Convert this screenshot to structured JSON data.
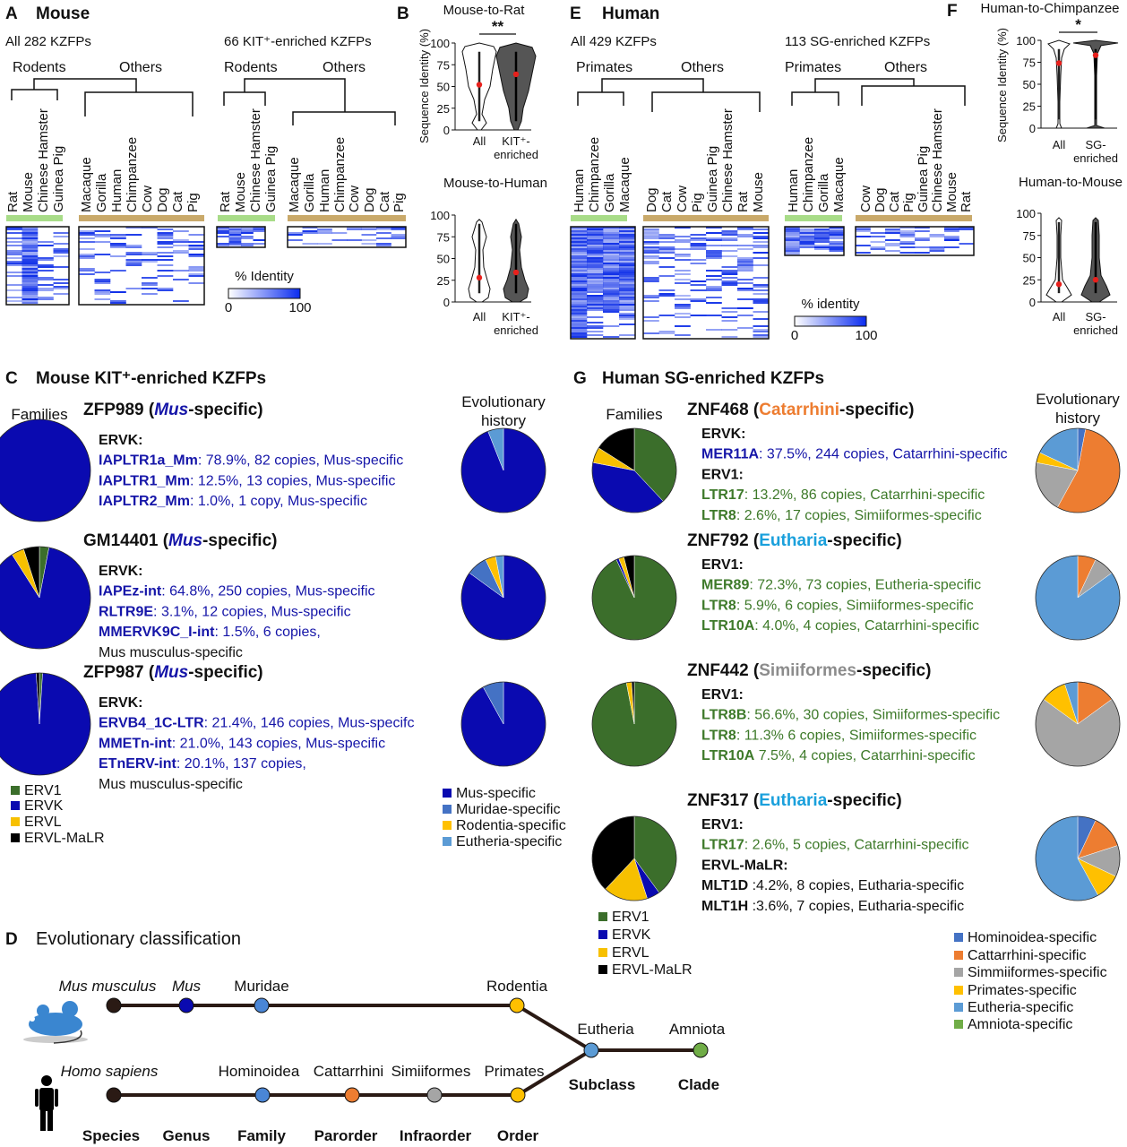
{
  "panel_a": {
    "letter": "A",
    "title": "Mouse",
    "left": {
      "label": "All 282 KZFPs",
      "group1": "Rodents",
      "group2": "Others",
      "species1": [
        "Rat",
        "Mouse",
        "Chinese Hamster",
        "Guinea Pig"
      ],
      "species2": [
        "Macaque",
        "Gorilla",
        "Human",
        "Chimpanzee",
        "Cow",
        "Dog",
        "Cat",
        "Pig"
      ]
    },
    "right": {
      "label": "66 KIT⁺-enriched KZFPs",
      "group1": "Rodents",
      "group2": "Others",
      "species1": [
        "Rat",
        "Mouse",
        "Chinese Hamster",
        "Guinea Pig"
      ],
      "species2": [
        "Macaque",
        "Gorilla",
        "Human",
        "Chimpanzee",
        "Cow",
        "Dog",
        "Cat",
        "Pig"
      ]
    },
    "legend": {
      "title": "% Identity",
      "min": 0,
      "max": 100
    }
  },
  "panel_b": {
    "letter": "B",
    "charts": [
      {
        "type": "violin",
        "title": "Mouse-to-Rat",
        "significance": "**",
        "y_label": "Sequence Identity (%)",
        "categories": [
          [
            "All"
          ],
          [
            "KIT⁺-",
            "enriched"
          ]
        ],
        "colors": [
          "#ffffff",
          "#555555"
        ],
        "means": [
          52,
          64
        ],
        "mean_color": "#e8201c",
        "ylim": [
          0,
          100
        ],
        "yticks": [
          0,
          25,
          50,
          75,
          100
        ]
      },
      {
        "type": "violin",
        "title": "Mouse-to-Human",
        "categories": [
          [
            "All"
          ],
          [
            "KIT⁺-",
            "enriched"
          ]
        ],
        "colors": [
          "#ffffff",
          "#555555"
        ],
        "means": [
          28,
          34
        ],
        "mean_color": "#e8201c",
        "ylim": [
          0,
          100
        ],
        "yticks": [
          0,
          25,
          50,
          75,
          100
        ]
      }
    ]
  },
  "panel_c": {
    "letter": "C",
    "title": "Mouse KIT⁺-enriched KZFPs",
    "families_label": "Families",
    "history_label": [
      "Evolutionary",
      "history"
    ],
    "entries": [
      {
        "heading": {
          "name": "ZFP989 (",
          "clade": "Mus",
          "tail": "-specific)",
          "clade_color": "#1515a8"
        },
        "groups": [
          {
            "family": "ERVK:",
            "color": "#1515a8",
            "items": [
              {
                "te": "IAPLTR1a_Mm",
                "text": ": 78.9%, 82 copies, Mus-specific"
              },
              {
                "te": "IAPLTR1_Mm",
                "text": ": 12.5%, 13 copies, Mus-specific"
              },
              {
                "te": "IAPLTR2_Mm",
                "text": ": 1.0%, 1 copy, Mus-specific"
              }
            ]
          }
        ],
        "families": {
          "type": "pie",
          "values": [
            0,
            100,
            0,
            0
          ]
        },
        "history": {
          "type": "pie",
          "values": [
            94,
            0,
            0,
            6
          ]
        }
      },
      {
        "heading": {
          "name": "GM14401 (",
          "clade": "Mus",
          "tail": "-specific)",
          "clade_color": "#1515a8"
        },
        "groups": [
          {
            "family": "ERVK:",
            "color": "#1515a8",
            "items": [
              {
                "te": "IAPEz-int",
                "text": ": 64.8%, 250 copies, Mus-specific"
              },
              {
                "te": "RLTR9E",
                "text": ": 3.1%, 12 copies, Mus-specific"
              },
              {
                "te": "MMERVK9C_I-int",
                "text": ": 1.5%, 6 copies,",
                "continuation": "Mus musculus-specific"
              }
            ]
          }
        ],
        "families": {
          "type": "pie",
          "values": [
            3,
            88,
            4,
            5
          ]
        },
        "history": {
          "type": "pie",
          "values": [
            85,
            8,
            4,
            3
          ]
        }
      },
      {
        "heading": {
          "name": "ZFP987 (",
          "clade": "Mus",
          "tail": "-specific)",
          "clade_color": "#1515a8"
        },
        "groups": [
          {
            "family": "ERVK:",
            "color": "#1515a8",
            "items": [
              {
                "te": "ERVB4_1C-LTR",
                "text": ": 21.4%, 146 copies, Mus-specifc"
              },
              {
                "te": "MMETn-int",
                "text": ": 21.0%, 143 copies, Mus-specific"
              },
              {
                "te": "ETnERV-int",
                "text": ": 20.1%,  137 copies,",
                "continuation": "Mus musculus-specific"
              }
            ]
          }
        ],
        "families": {
          "type": "pie",
          "values": [
            1,
            98,
            0,
            1
          ]
        },
        "history": {
          "type": "pie",
          "values": [
            92,
            8,
            0,
            0
          ]
        }
      }
    ],
    "family_legend": [
      {
        "name": "ERV1",
        "color": "#3b6e2b"
      },
      {
        "name": "ERVK",
        "color": "#0a0ab0"
      },
      {
        "name": "ERVL",
        "color": "#f7c000"
      },
      {
        "name": "ERVL-MaLR",
        "color": "#000000"
      }
    ],
    "history_legend": [
      {
        "name": "Mus-specific",
        "color": "#0a0ab0"
      },
      {
        "name": "Muridae-specific",
        "color": "#4472c4"
      },
      {
        "name": "Rodentia-specific",
        "color": "#ffc000"
      },
      {
        "name": "Eutheria-specific",
        "color": "#5b9bd5"
      }
    ]
  },
  "panel_d": {
    "letter": "D",
    "title": "Evolutionary classification",
    "top": {
      "species": "Mus musculus",
      "nodes": [
        {
          "name": "Mus",
          "color": "#0a0ab0"
        },
        {
          "name": "Muridae",
          "color": "#4a86d6"
        },
        {
          "name": "Rodentia",
          "color": "#ffc000"
        }
      ]
    },
    "bottom": {
      "species": "Homo sapiens",
      "nodes": [
        {
          "name": "Hominoidea",
          "color": "#4a86d6"
        },
        {
          "name": "Cattarrhini",
          "color": "#ed7d31"
        },
        {
          "name": "Simiiformes",
          "color": "#a5a5a5"
        },
        {
          "name": "Primates",
          "color": "#ffc000"
        }
      ]
    },
    "shared": [
      {
        "name": "Eutheria",
        "color": "#5b9bd5"
      },
      {
        "name": "Amniota",
        "color": "#70ad47"
      }
    ],
    "ranks": [
      "Species",
      "Genus",
      "Family",
      "Parorder",
      "Infraorder",
      "Order",
      "Subclass",
      "Clade"
    ]
  },
  "panel_e": {
    "letter": "E",
    "title": "Human",
    "left": {
      "label": "All 429 KZFPs",
      "group1": "Primates",
      "group2": "Others",
      "species1": [
        "Human",
        "Chimpanzee",
        "Gorilla",
        "Macaque"
      ],
      "species2": [
        "Dog",
        "Cat",
        "Cow",
        "Pig",
        "Guinea Pig",
        "Chinese Hamster",
        "Rat",
        "Mouse"
      ]
    },
    "right": {
      "label": "113 SG-enriched KZFPs",
      "group1": "Primates",
      "group2": "Others",
      "species1": [
        "Human",
        "Chimpanzee",
        "Gorilla",
        "Macaque"
      ],
      "species2": [
        "Cow",
        "Dog",
        "Cat",
        "Pig",
        "Guinea Pig",
        "Chinese Hamster",
        "Mouse",
        "Rat"
      ]
    },
    "legend": {
      "title": "% identity",
      "min": 0,
      "max": 100
    }
  },
  "panel_f": {
    "letter": "F",
    "charts": [
      {
        "type": "violin",
        "title": "Human-to-Chimpanzee",
        "significance": "*",
        "y_label": "Sequence Identity (%)",
        "categories": [
          [
            "All"
          ],
          [
            "SG-",
            "enriched"
          ]
        ],
        "colors": [
          "#ffffff",
          "#555555"
        ],
        "means": [
          74,
          83
        ],
        "mean_color": "#e8201c",
        "ylim": [
          0,
          100
        ],
        "yticks": [
          0,
          25,
          50,
          75,
          100
        ]
      },
      {
        "type": "violin",
        "title": "Human-to-Mouse",
        "categories": [
          [
            "All"
          ],
          [
            "SG-",
            "enriched"
          ]
        ],
        "colors": [
          "#ffffff",
          "#555555"
        ],
        "means": [
          20,
          25
        ],
        "mean_color": "#e8201c",
        "ylim": [
          0,
          100
        ],
        "yticks": [
          0,
          25,
          50,
          75,
          100
        ]
      }
    ]
  },
  "panel_g": {
    "letter": "G",
    "title": "Human SG-enriched KZFPs",
    "families_label": "Families",
    "history_label": [
      "Evolutionary",
      "history"
    ],
    "entries": [
      {
        "heading": {
          "name": "ZNF468 (",
          "clade": "Catarrhini",
          "tail": "-specific)",
          "clade_color": "#ed7d31"
        },
        "groups": [
          {
            "family": "ERVK:",
            "color": "#1515a8",
            "items": [
              {
                "te": "MER11A",
                "text": ": 37.5%, 244 copies, Catarrhini-specific"
              }
            ]
          },
          {
            "family": "ERV1:",
            "color": "#3e7a2a",
            "items": [
              {
                "te": "LTR17",
                "text": ": 13.2%, 86 copies, Catarrhini-specific"
              },
              {
                "te": "LTR8",
                "text": ": 2.6%, 17 copies, Simiiformes-specific"
              }
            ]
          }
        ],
        "families": {
          "type": "pie",
          "values": [
            38,
            40,
            6,
            16
          ]
        },
        "history": {
          "type": "pie",
          "values": [
            3,
            55,
            20,
            4,
            18,
            0
          ]
        }
      },
      {
        "heading": {
          "name": "ZNF792 (",
          "clade": "Eutharia",
          "tail": "-specific)",
          "clade_color": "#1aa0dc"
        },
        "groups": [
          {
            "family": "ERV1:",
            "color": "#3e7a2a",
            "items": [
              {
                "te": "MER89",
                "text": ": 72.3%, 73 copies, Eutheria-specific"
              },
              {
                "te": "LTR8",
                "text": ": 5.9%, 6 copies, Simiiformes-specific"
              },
              {
                "te": "LTR10A",
                "text": ": 4.0%, 4 copies, Catarrhini-specific"
              }
            ]
          }
        ],
        "families": {
          "type": "pie",
          "values": [
            93,
            1,
            2,
            4
          ]
        },
        "history": {
          "type": "pie",
          "values": [
            0,
            7,
            8,
            0,
            85,
            0
          ]
        }
      },
      {
        "heading": {
          "name": "ZNF442 (",
          "clade": "Simiiformes",
          "tail": "-specific)",
          "clade_color": "#8c8c8c"
        },
        "groups": [
          {
            "family": "ERV1:",
            "color": "#3e7a2a",
            "items": [
              {
                "te": "LTR8B",
                "text": ": 56.6%, 30 copies, Simiiformes-specific"
              },
              {
                "te": "LTR8",
                "text": ": 11.3% 6 copies, Simiiformes-specific"
              },
              {
                "te": "LTR10A",
                "text": " 7.5%, 4 copies, Catarrhini-specific"
              }
            ]
          }
        ],
        "families": {
          "type": "pie",
          "values": [
            97,
            0,
            2,
            1
          ]
        },
        "history": {
          "type": "pie",
          "values": [
            0,
            15,
            70,
            10,
            5,
            0
          ]
        }
      },
      {
        "heading": {
          "name": "ZNF317 (",
          "clade": "Eutharia",
          "tail": "-specific)",
          "clade_color": "#1aa0dc"
        },
        "groups": [
          {
            "family": "ERV1:",
            "color": "#3e7a2a",
            "items": [
              {
                "te": "LTR17",
                "text": ": 2.6%, 5 copies, Catarrhini-specific"
              }
            ]
          },
          {
            "family": "ERVL-MaLR:",
            "color": "#111111",
            "items": [
              {
                "te": "MLT1D",
                "text": " :4.2%, 8 copies, Eutharia-specific"
              },
              {
                "te": "MLT1H",
                "text": " :3.6%, 7 copies, Eutharia-specific"
              }
            ]
          }
        ],
        "families": {
          "type": "pie",
          "values": [
            40,
            5,
            17,
            38
          ]
        },
        "history": {
          "type": "pie",
          "values": [
            7,
            13,
            12,
            10,
            58,
            0
          ]
        }
      }
    ],
    "family_legend": [
      {
        "name": "ERV1",
        "color": "#3b6e2b"
      },
      {
        "name": "ERVK",
        "color": "#0a0ab0"
      },
      {
        "name": "ERVL",
        "color": "#f7c000"
      },
      {
        "name": "ERVL-MaLR",
        "color": "#000000"
      }
    ],
    "history_legend": [
      {
        "name": "Hominoidea-specific",
        "color": "#4472c4"
      },
      {
        "name": "Cattarrhini-specific",
        "color": "#ed7d31"
      },
      {
        "name": "Simmiiformes-specific",
        "color": "#a5a5a5"
      },
      {
        "name": "Primates-specific",
        "color": "#ffc000"
      },
      {
        "name": "Eutheria-specific",
        "color": "#5b9bd5"
      },
      {
        "name": "Amniota-specific",
        "color": "#70ad47"
      }
    ]
  }
}
